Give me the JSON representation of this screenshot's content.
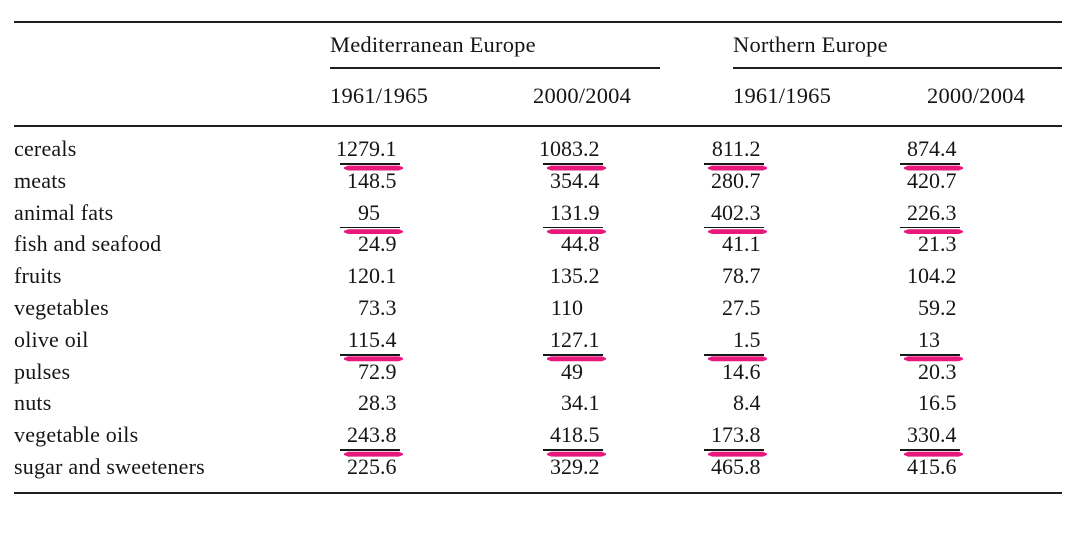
{
  "table": {
    "annotation_color": "#e8187d",
    "column_groups": [
      {
        "label": "Mediterranean Europe",
        "years": [
          "1961/1965",
          "2000/2004"
        ]
      },
      {
        "label": "Northern Europe",
        "years": [
          "1961/1965",
          "2000/2004"
        ]
      }
    ],
    "rows": [
      {
        "label": "cereals",
        "values": [
          "1279.1",
          "1083.2",
          "811.2",
          "874.4"
        ],
        "annotated": [
          true,
          true,
          true,
          true
        ]
      },
      {
        "label": "meats",
        "values": [
          "148.5",
          "354.4",
          "280.7",
          "420.7"
        ],
        "annotated": [
          false,
          false,
          false,
          false
        ]
      },
      {
        "label": "animal fats",
        "values": [
          "95",
          "131.9",
          "402.3",
          "226.3"
        ],
        "annotated": [
          true,
          true,
          true,
          true
        ]
      },
      {
        "label": "fish and seafood",
        "values": [
          "24.9",
          "44.8",
          "41.1",
          "21.3"
        ],
        "annotated": [
          false,
          false,
          false,
          false
        ]
      },
      {
        "label": "fruits",
        "values": [
          "120.1",
          "135.2",
          "78.7",
          "104.2"
        ],
        "annotated": [
          false,
          false,
          false,
          false
        ]
      },
      {
        "label": "vegetables",
        "values": [
          "73.3",
          "110",
          "27.5",
          "59.2"
        ],
        "annotated": [
          false,
          false,
          false,
          false
        ]
      },
      {
        "label": "olive oil",
        "values": [
          "115.4",
          "127.1",
          "1.5",
          "13"
        ],
        "annotated": [
          true,
          true,
          true,
          true
        ]
      },
      {
        "label": "pulses",
        "values": [
          "72.9",
          "49",
          "14.6",
          "20.3"
        ],
        "annotated": [
          false,
          false,
          false,
          false
        ]
      },
      {
        "label": "nuts",
        "values": [
          "28.3",
          "34.1",
          "8.4",
          "16.5"
        ],
        "annotated": [
          false,
          false,
          false,
          false
        ]
      },
      {
        "label": "vegetable oils",
        "values": [
          "243.8",
          "418.5",
          "173.8",
          "330.4"
        ],
        "annotated": [
          true,
          true,
          true,
          true
        ]
      },
      {
        "label": "sugar and sweeteners",
        "values": [
          "225.6",
          "329.2",
          "465.8",
          "415.6"
        ],
        "annotated": [
          false,
          false,
          false,
          false
        ]
      }
    ]
  },
  "chart_data": {
    "type": "table",
    "title": "",
    "column_headers": [
      "",
      "Mediterranean Europe 1961/1965",
      "Mediterranean Europe 2000/2004",
      "Northern Europe 1961/1965",
      "Northern Europe 2000/2004"
    ],
    "rows": [
      [
        "cereals",
        1279.1,
        1083.2,
        811.2,
        874.4
      ],
      [
        "meats",
        148.5,
        354.4,
        280.7,
        420.7
      ],
      [
        "animal fats",
        95,
        131.9,
        402.3,
        226.3
      ],
      [
        "fish and seafood",
        24.9,
        44.8,
        41.1,
        21.3
      ],
      [
        "fruits",
        120.1,
        135.2,
        78.7,
        104.2
      ],
      [
        "vegetables",
        73.3,
        110,
        27.5,
        59.2
      ],
      [
        "olive oil",
        115.4,
        127.1,
        1.5,
        13
      ],
      [
        "pulses",
        72.9,
        49,
        14.6,
        20.3
      ],
      [
        "nuts",
        28.3,
        34.1,
        8.4,
        16.5
      ],
      [
        "vegetable oils",
        243.8,
        418.5,
        173.8,
        330.4
      ],
      [
        "sugar and sweeteners",
        225.6,
        329.2,
        465.8,
        415.6
      ]
    ],
    "highlighted_rows": [
      "cereals",
      "animal fats",
      "olive oil",
      "vegetable oils"
    ]
  }
}
